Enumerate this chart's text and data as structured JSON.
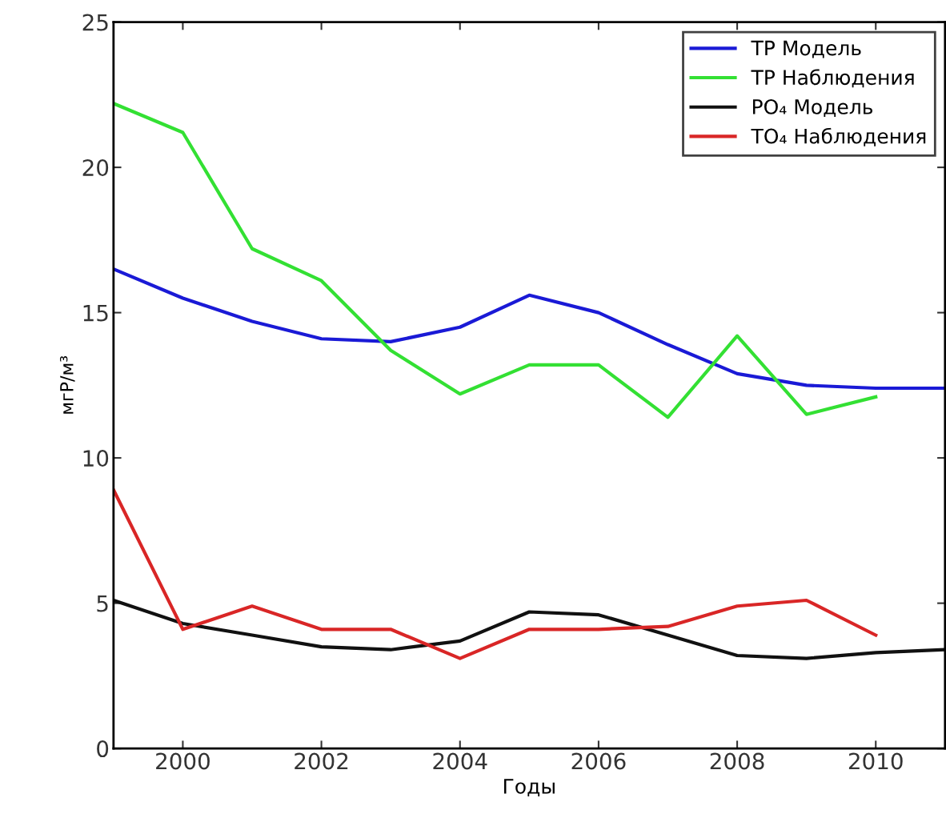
{
  "chart_data": {
    "type": "line",
    "xlabel": "Годы",
    "ylabel": "мгР/м³",
    "xlim": [
      1999,
      2011
    ],
    "xticks": [
      2000,
      2002,
      2004,
      2006,
      2008,
      2010
    ],
    "ylim": [
      0,
      25
    ],
    "yticks": [
      0,
      5,
      10,
      15,
      20,
      25
    ],
    "grid": false,
    "legend": "top right",
    "series": [
      {
        "name": "TP Модель",
        "color": "#1a1ad6",
        "x": [
          1999,
          2000,
          2001,
          2002,
          2003,
          2004,
          2005,
          2006,
          2007,
          2008,
          2009,
          2010,
          2011
        ],
        "values": [
          16.5,
          15.5,
          14.7,
          14.1,
          14.0,
          14.5,
          15.6,
          15.0,
          13.9,
          12.9,
          12.5,
          12.4,
          12.4
        ]
      },
      {
        "name": "TP Наблюдения",
        "color": "#33e033",
        "x": [
          1999,
          2000,
          2001,
          2002,
          2003,
          2004,
          2005,
          2006,
          2007,
          2008,
          2009,
          2010
        ],
        "values": [
          22.2,
          21.2,
          17.2,
          16.1,
          13.7,
          12.2,
          13.2,
          13.2,
          11.4,
          14.2,
          11.5,
          12.1
        ]
      },
      {
        "name": "PO₄ Модель",
        "color": "#111111",
        "x": [
          1999,
          2000,
          2001,
          2002,
          2003,
          2004,
          2005,
          2006,
          2007,
          2008,
          2009,
          2010,
          2011
        ],
        "values": [
          5.1,
          4.3,
          3.9,
          3.5,
          3.4,
          3.7,
          4.7,
          4.6,
          3.9,
          3.2,
          3.1,
          3.3,
          3.4
        ]
      },
      {
        "name": "TO₄ Наблюдения",
        "color": "#d92626",
        "x": [
          1999,
          2000,
          2001,
          2002,
          2003,
          2004,
          2005,
          2006,
          2007,
          2008,
          2009,
          2010
        ],
        "values": [
          8.9,
          4.1,
          4.9,
          4.1,
          4.1,
          3.1,
          4.1,
          4.1,
          4.2,
          4.9,
          5.1,
          3.9
        ]
      }
    ]
  }
}
